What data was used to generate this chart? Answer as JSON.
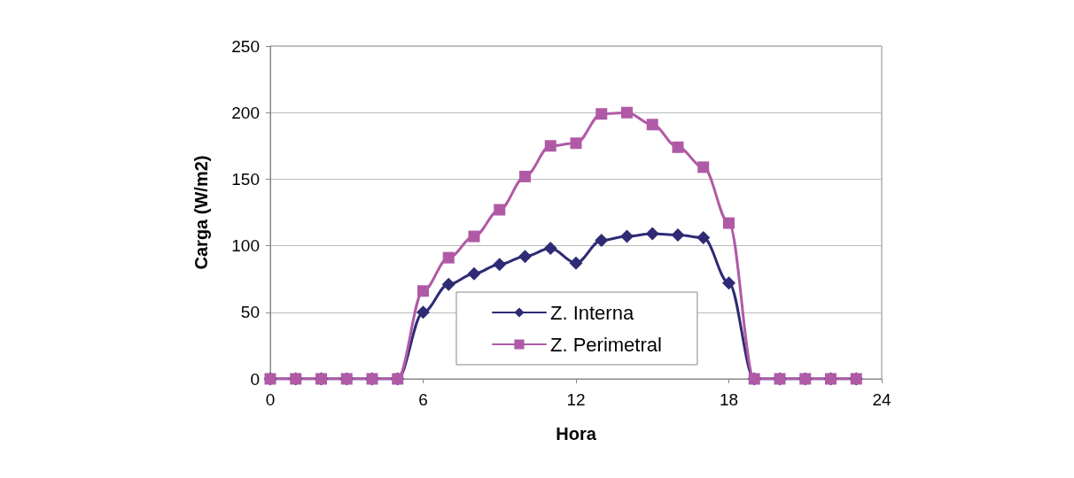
{
  "chart_data": {
    "type": "line",
    "xlabel": "Hora",
    "ylabel": "Carga (W/m2)",
    "xlim": [
      0,
      24
    ],
    "xticks": [
      0,
      6,
      12,
      18,
      24
    ],
    "ylim": [
      0,
      250
    ],
    "yticks": [
      0,
      50,
      100,
      150,
      200,
      250
    ],
    "grid": "y",
    "legend": "bottom",
    "x": [
      0,
      1,
      2,
      3,
      4,
      5,
      6,
      7,
      8,
      9,
      10,
      11,
      12,
      13,
      14,
      15,
      16,
      17,
      18,
      19,
      20,
      21,
      22,
      23
    ],
    "series": [
      {
        "name": "Z. Interna",
        "color": "#2e2b74",
        "marker": "diamond",
        "values": [
          0,
          0,
          0,
          0,
          0,
          0,
          50,
          71,
          79,
          86,
          92,
          98,
          87,
          104,
          107,
          109,
          108,
          106,
          72,
          0,
          0,
          0,
          0,
          0
        ]
      },
      {
        "name": "Z. Perimetral",
        "color": "#b05aa6",
        "marker": "square",
        "values": [
          0,
          0,
          0,
          0,
          0,
          0,
          66,
          91,
          107,
          127,
          152,
          175,
          177,
          199,
          200,
          191,
          174,
          159,
          117,
          0,
          0,
          0,
          0,
          0
        ]
      }
    ]
  }
}
